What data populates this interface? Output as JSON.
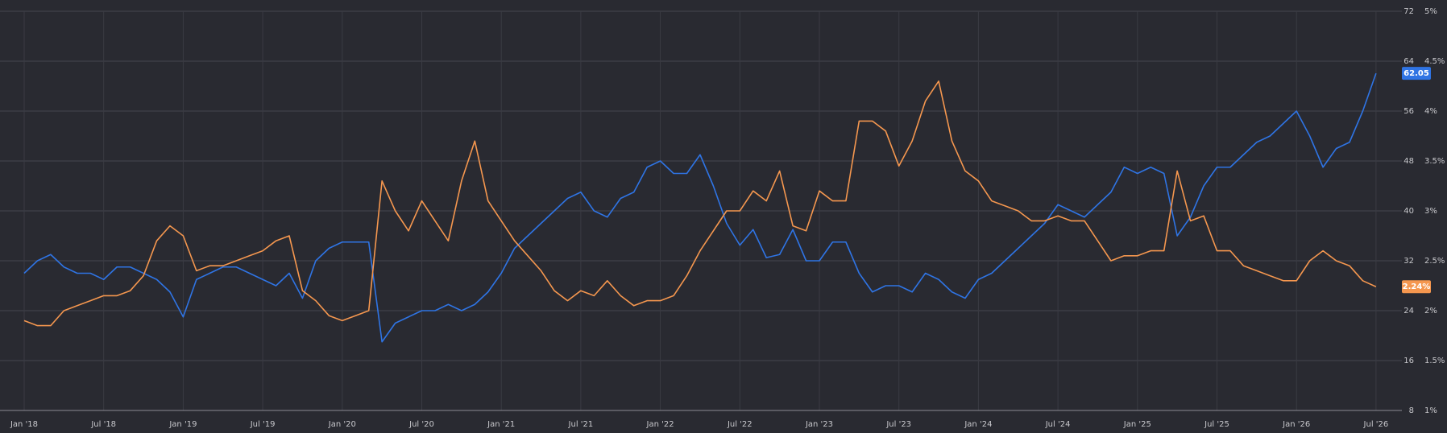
{
  "chart_data": {
    "type": "line",
    "x": [
      "2018-01",
      "2018-02",
      "2018-03",
      "2018-04",
      "2018-05",
      "2018-06",
      "2018-07",
      "2018-08",
      "2018-09",
      "2018-10",
      "2018-11",
      "2018-12",
      "2019-01",
      "2019-02",
      "2019-03",
      "2019-04",
      "2019-05",
      "2019-06",
      "2019-07",
      "2019-08",
      "2019-09",
      "2019-10",
      "2019-11",
      "2019-12",
      "2020-01",
      "2020-02",
      "2020-03",
      "2020-04",
      "2020-05",
      "2020-06",
      "2020-07",
      "2020-08",
      "2020-09",
      "2020-10",
      "2020-11",
      "2020-12",
      "2021-01",
      "2021-02",
      "2021-03",
      "2021-04",
      "2021-05",
      "2021-06",
      "2021-07",
      "2021-08",
      "2021-09",
      "2021-10",
      "2021-11",
      "2021-12",
      "2022-01",
      "2022-02",
      "2022-03",
      "2022-04",
      "2022-05",
      "2022-06",
      "2022-07",
      "2022-08",
      "2022-09",
      "2022-10",
      "2022-11",
      "2022-12",
      "2023-01",
      "2023-02",
      "2023-03",
      "2023-04",
      "2023-05",
      "2023-06",
      "2023-07",
      "2023-08",
      "2023-09",
      "2023-10",
      "2023-11",
      "2023-12",
      "2024-01",
      "2024-02",
      "2024-03",
      "2024-04",
      "2024-05",
      "2024-06",
      "2024-07",
      "2024-08",
      "2024-09",
      "2024-10",
      "2024-11",
      "2024-12",
      "2025-01",
      "2025-02",
      "2025-03",
      "2025-04",
      "2025-05",
      "2025-06",
      "2025-07",
      "2025-08",
      "2025-09",
      "2025-10",
      "2025-11",
      "2025-12",
      "2026-01",
      "2026-02",
      "2026-03",
      "2026-04",
      "2026-05",
      "2026-06",
      "2026-07"
    ],
    "series": [
      {
        "color": "#2f74e4",
        "axis": "y",
        "values": [
          30,
          32,
          33,
          31,
          30,
          30,
          29,
          31,
          31,
          30,
          29,
          27,
          23,
          29,
          30,
          31,
          31,
          30,
          29,
          28,
          30,
          26,
          32,
          34,
          35,
          35,
          35,
          19,
          22,
          23,
          24,
          24,
          25,
          24,
          25,
          27,
          30,
          34,
          36,
          38,
          40,
          42,
          43,
          40,
          39,
          42,
          43,
          47,
          48,
          46,
          46,
          49,
          44,
          38,
          34.5,
          37,
          32.5,
          33,
          37,
          32,
          32,
          35,
          35,
          30,
          27,
          28,
          28,
          27,
          30,
          29,
          27,
          26,
          29,
          30,
          32,
          34,
          36,
          38,
          41,
          40,
          39,
          41,
          43,
          47,
          46,
          47,
          46,
          36,
          39,
          44,
          47,
          47,
          49,
          51,
          52,
          54,
          56,
          52,
          47,
          50,
          51,
          56,
          62.05
        ]
      },
      {
        "color": "#f5974f",
        "axis": "y2",
        "values": [
          1.9,
          1.85,
          1.85,
          2.0,
          2.05,
          2.1,
          2.15,
          2.15,
          2.2,
          2.35,
          2.7,
          2.85,
          2.75,
          2.4,
          2.45,
          2.45,
          2.5,
          2.55,
          2.6,
          2.7,
          2.75,
          2.2,
          2.1,
          1.95,
          1.9,
          1.95,
          2.0,
          3.3,
          3.0,
          2.8,
          3.1,
          2.9,
          2.7,
          3.3,
          3.7,
          3.1,
          2.9,
          2.7,
          2.55,
          2.4,
          2.2,
          2.1,
          2.2,
          2.15,
          2.3,
          2.15,
          2.05,
          2.1,
          2.1,
          2.15,
          2.35,
          2.6,
          2.8,
          3.0,
          3.0,
          3.2,
          3.1,
          3.4,
          2.85,
          2.8,
          3.2,
          3.1,
          3.1,
          3.9,
          3.9,
          3.8,
          3.45,
          3.7,
          4.1,
          4.3,
          3.7,
          3.4,
          3.3,
          3.1,
          3.05,
          3.0,
          2.9,
          2.9,
          2.95,
          2.9,
          2.9,
          2.7,
          2.5,
          2.55,
          2.55,
          2.6,
          2.6,
          3.4,
          2.9,
          2.95,
          2.6,
          2.6,
          2.45,
          2.4,
          2.35,
          2.3,
          2.3,
          2.5,
          2.6,
          2.5,
          2.45,
          2.3,
          2.24
        ],
        "value_labels": [
          null,
          null,
          null,
          null,
          null,
          null,
          null,
          null,
          null,
          null,
          null,
          null,
          null,
          null,
          null,
          null,
          null,
          null,
          null,
          null,
          null,
          null,
          null,
          null,
          null,
          null,
          null,
          null,
          null,
          null,
          null,
          null,
          null,
          null,
          null,
          null,
          null,
          null,
          null,
          null,
          null,
          null,
          null,
          null,
          null,
          null,
          null,
          null,
          null,
          null,
          null,
          null,
          null,
          null,
          null,
          null,
          null,
          null,
          null,
          null,
          null,
          null,
          null,
          null,
          null,
          null,
          null,
          null,
          null,
          null,
          null,
          null,
          null,
          null,
          null,
          null,
          null,
          null,
          null,
          null,
          null,
          null,
          null,
          null,
          null,
          null,
          null,
          null,
          null,
          null,
          null,
          null,
          null,
          null,
          null,
          null,
          null,
          null,
          null,
          null,
          null,
          null,
          "2.24%"
        ]
      }
    ],
    "ylim": [
      8,
      72
    ],
    "yticks": [
      8,
      16,
      24,
      32,
      40,
      48,
      56,
      64,
      72
    ],
    "y2lim": [
      1,
      5
    ],
    "y2ticks": [
      {
        "value": 1,
        "label": "1%"
      },
      {
        "value": 1.5,
        "label": "1.5%"
      },
      {
        "value": 2,
        "label": "2%"
      },
      {
        "value": 2.5,
        "label": "2.5%"
      },
      {
        "value": 3,
        "label": "3%"
      },
      {
        "value": 3.5,
        "label": "3.5%"
      },
      {
        "value": 4,
        "label": "4%"
      },
      {
        "value": 4.5,
        "label": "4.5%"
      },
      {
        "value": 5,
        "label": "5%"
      }
    ],
    "xticks": [
      {
        "value": "2018-01",
        "label": "Jan '18"
      },
      {
        "value": "2018-07",
        "label": "Jul '18"
      },
      {
        "value": "2019-01",
        "label": "Jan '19"
      },
      {
        "value": "2019-07",
        "label": "Jul '19"
      },
      {
        "value": "2020-01",
        "label": "Jan '20"
      },
      {
        "value": "2020-07",
        "label": "Jul '20"
      },
      {
        "value": "2021-01",
        "label": "Jan '21"
      },
      {
        "value": "2021-07",
        "label": "Jul '21"
      },
      {
        "value": "2022-01",
        "label": "Jan '22"
      },
      {
        "value": "2022-07",
        "label": "Jul '22"
      },
      {
        "value": "2023-01",
        "label": "Jan '23"
      },
      {
        "value": "2023-07",
        "label": "Jul '23"
      },
      {
        "value": "2024-01",
        "label": "Jan '24"
      },
      {
        "value": "2024-07",
        "label": "Jul '24"
      },
      {
        "value": "2025-01",
        "label": "Jan '25"
      },
      {
        "value": "2025-07",
        "label": "Jul '25"
      },
      {
        "value": "2026-01",
        "label": "Jan '26"
      },
      {
        "value": "2026-07",
        "label": "Jul '26"
      }
    ],
    "grid": true
  }
}
